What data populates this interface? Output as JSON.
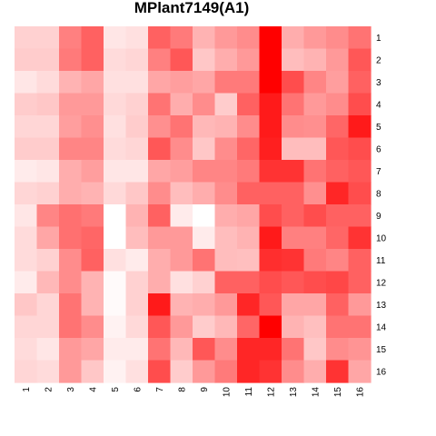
{
  "chart_data": {
    "type": "heatmap",
    "title": "MPlant7149(A1)",
    "x_labels": [
      "1",
      "2",
      "3",
      "4",
      "5",
      "6",
      "7",
      "8",
      "9",
      "10",
      "11",
      "12",
      "13",
      "14",
      "15",
      "16"
    ],
    "y_labels": [
      "1",
      "2",
      "3",
      "4",
      "5",
      "6",
      "7",
      "8",
      "9",
      "10",
      "11",
      "12",
      "13",
      "14",
      "15",
      "16"
    ],
    "value_range": [
      0,
      1
    ],
    "color_low": "#ffffff",
    "color_high": "#ff0000",
    "grid": false,
    "values": [
      [
        0.18,
        0.18,
        0.5,
        0.62,
        0.1,
        0.12,
        0.62,
        0.52,
        0.3,
        0.4,
        0.45,
        1.0,
        0.32,
        0.4,
        0.45,
        0.55
      ],
      [
        0.2,
        0.2,
        0.52,
        0.62,
        0.14,
        0.16,
        0.5,
        0.66,
        0.22,
        0.32,
        0.4,
        1.0,
        0.26,
        0.3,
        0.4,
        0.66
      ],
      [
        0.1,
        0.14,
        0.3,
        0.35,
        0.12,
        0.12,
        0.35,
        0.38,
        0.35,
        0.52,
        0.52,
        1.0,
        0.7,
        0.48,
        0.38,
        0.62
      ],
      [
        0.2,
        0.22,
        0.4,
        0.4,
        0.15,
        0.18,
        0.55,
        0.32,
        0.45,
        0.2,
        0.62,
        0.9,
        0.55,
        0.4,
        0.45,
        0.7
      ],
      [
        0.16,
        0.16,
        0.38,
        0.44,
        0.12,
        0.2,
        0.44,
        0.55,
        0.28,
        0.3,
        0.45,
        0.9,
        0.45,
        0.44,
        0.6,
        0.9
      ],
      [
        0.2,
        0.2,
        0.48,
        0.48,
        0.14,
        0.16,
        0.66,
        0.45,
        0.22,
        0.45,
        0.6,
        0.88,
        0.26,
        0.26,
        0.66,
        0.7
      ],
      [
        0.08,
        0.1,
        0.32,
        0.38,
        0.1,
        0.1,
        0.35,
        0.38,
        0.48,
        0.48,
        0.52,
        0.8,
        0.8,
        0.55,
        0.62,
        0.66
      ],
      [
        0.16,
        0.18,
        0.32,
        0.3,
        0.15,
        0.22,
        0.45,
        0.26,
        0.32,
        0.45,
        0.62,
        0.62,
        0.62,
        0.44,
        0.85,
        0.7
      ],
      [
        0.1,
        0.48,
        0.56,
        0.52,
        0.0,
        0.3,
        0.62,
        0.08,
        0.0,
        0.32,
        0.35,
        0.7,
        0.62,
        0.7,
        0.62,
        0.62
      ],
      [
        0.14,
        0.35,
        0.56,
        0.6,
        0.0,
        0.26,
        0.4,
        0.4,
        0.08,
        0.26,
        0.3,
        0.9,
        0.5,
        0.5,
        0.6,
        0.8
      ],
      [
        0.14,
        0.18,
        0.45,
        0.62,
        0.12,
        0.08,
        0.32,
        0.4,
        0.55,
        0.26,
        0.25,
        0.82,
        0.8,
        0.52,
        0.48,
        0.62
      ],
      [
        0.08,
        0.28,
        0.45,
        0.3,
        0.02,
        0.18,
        0.32,
        0.12,
        0.18,
        0.62,
        0.62,
        0.7,
        0.66,
        0.7,
        0.72,
        0.62
      ],
      [
        0.22,
        0.16,
        0.55,
        0.3,
        0.02,
        0.18,
        0.9,
        0.3,
        0.32,
        0.4,
        0.85,
        0.66,
        0.35,
        0.35,
        0.62,
        0.4
      ],
      [
        0.16,
        0.16,
        0.55,
        0.45,
        0.05,
        0.15,
        0.66,
        0.4,
        0.2,
        0.28,
        0.6,
        1.0,
        0.3,
        0.25,
        0.55,
        0.55
      ],
      [
        0.14,
        0.1,
        0.4,
        0.35,
        0.08,
        0.08,
        0.55,
        0.28,
        0.66,
        0.45,
        0.85,
        0.85,
        0.55,
        0.22,
        0.45,
        0.42
      ],
      [
        0.16,
        0.14,
        0.4,
        0.22,
        0.05,
        0.12,
        0.7,
        0.2,
        0.4,
        0.52,
        0.85,
        0.8,
        0.45,
        0.32,
        0.8,
        0.35
      ]
    ]
  }
}
